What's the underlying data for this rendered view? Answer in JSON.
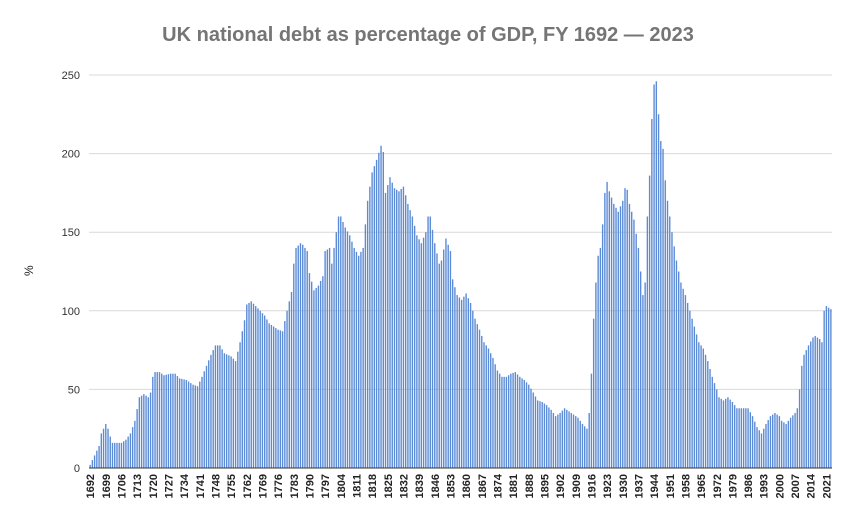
{
  "chart_data": {
    "type": "bar",
    "title": "UK national debt as percentage of GDP, FY 1692 — 2023",
    "xlabel": "",
    "ylabel": "%",
    "ylim": [
      0,
      250
    ],
    "yticks": [
      0,
      50,
      100,
      150,
      200,
      250
    ],
    "grid": true,
    "legend": "none",
    "bar_color": "#5b8bd6",
    "x_tick_labels": [
      "1692",
      "1699",
      "1706",
      "1713",
      "1720",
      "1727",
      "1734",
      "1741",
      "1748",
      "1755",
      "1762",
      "1769",
      "1776",
      "1783",
      "1790",
      "1797",
      "1804",
      "1811",
      "1818",
      "1825",
      "1832",
      "1839",
      "1846",
      "1853",
      "1860",
      "1867",
      "1874",
      "1881",
      "1888",
      "1895",
      "1902",
      "1909",
      "1916",
      "1923",
      "1930",
      "1937",
      "1944",
      "1951",
      "1958",
      "1965",
      "1972",
      "1979",
      "1986",
      "1993",
      "2000",
      "2007",
      "2014",
      "2021"
    ],
    "keyframes": [
      [
        1692,
        2
      ],
      [
        1694,
        8
      ],
      [
        1696,
        14
      ],
      [
        1697,
        22
      ],
      [
        1699,
        28
      ],
      [
        1700,
        25
      ],
      [
        1701,
        20
      ],
      [
        1702,
        16
      ],
      [
        1704,
        16
      ],
      [
        1706,
        16
      ],
      [
        1708,
        18
      ],
      [
        1710,
        22
      ],
      [
        1712,
        30
      ],
      [
        1714,
        45
      ],
      [
        1716,
        47
      ],
      [
        1718,
        45
      ],
      [
        1719,
        48
      ],
      [
        1720,
        58
      ],
      [
        1721,
        61
      ],
      [
        1723,
        61
      ],
      [
        1725,
        59
      ],
      [
        1728,
        60
      ],
      [
        1730,
        60
      ],
      [
        1732,
        57
      ],
      [
        1735,
        56
      ],
      [
        1738,
        53
      ],
      [
        1740,
        52
      ],
      [
        1742,
        58
      ],
      [
        1744,
        65
      ],
      [
        1746,
        72
      ],
      [
        1748,
        78
      ],
      [
        1750,
        78
      ],
      [
        1752,
        73
      ],
      [
        1755,
        71
      ],
      [
        1757,
        68
      ],
      [
        1759,
        80
      ],
      [
        1761,
        94
      ],
      [
        1762,
        104
      ],
      [
        1764,
        106
      ],
      [
        1766,
        103
      ],
      [
        1768,
        100
      ],
      [
        1770,
        97
      ],
      [
        1772,
        92
      ],
      [
        1774,
        90
      ],
      [
        1776,
        88
      ],
      [
        1778,
        87
      ],
      [
        1780,
        100
      ],
      [
        1782,
        112
      ],
      [
        1783,
        130
      ],
      [
        1784,
        140
      ],
      [
        1786,
        143
      ],
      [
        1787,
        142
      ],
      [
        1789,
        138
      ],
      [
        1790,
        124
      ],
      [
        1792,
        113
      ],
      [
        1794,
        116
      ],
      [
        1796,
        122
      ],
      [
        1797,
        138
      ],
      [
        1799,
        140
      ],
      [
        1800,
        130
      ],
      [
        1802,
        150
      ],
      [
        1803,
        160
      ],
      [
        1804,
        160
      ],
      [
        1806,
        153
      ],
      [
        1808,
        148
      ],
      [
        1810,
        140
      ],
      [
        1812,
        135
      ],
      [
        1814,
        140
      ],
      [
        1815,
        155
      ],
      [
        1816,
        170
      ],
      [
        1818,
        188
      ],
      [
        1820,
        196
      ],
      [
        1822,
        205
      ],
      [
        1823,
        201
      ],
      [
        1824,
        175
      ],
      [
        1826,
        185
      ],
      [
        1828,
        178
      ],
      [
        1830,
        176
      ],
      [
        1832,
        179
      ],
      [
        1834,
        168
      ],
      [
        1836,
        160
      ],
      [
        1838,
        148
      ],
      [
        1840,
        143
      ],
      [
        1842,
        150
      ],
      [
        1843,
        160
      ],
      [
        1844,
        160
      ],
      [
        1846,
        143
      ],
      [
        1848,
        130
      ],
      [
        1849,
        132
      ],
      [
        1851,
        146
      ],
      [
        1853,
        138
      ],
      [
        1854,
        120
      ],
      [
        1856,
        110
      ],
      [
        1858,
        107
      ],
      [
        1860,
        111
      ],
      [
        1862,
        105
      ],
      [
        1864,
        95
      ],
      [
        1866,
        88
      ],
      [
        1868,
        80
      ],
      [
        1870,
        76
      ],
      [
        1872,
        70
      ],
      [
        1874,
        62
      ],
      [
        1876,
        58
      ],
      [
        1878,
        58
      ],
      [
        1880,
        60
      ],
      [
        1882,
        61
      ],
      [
        1884,
        58
      ],
      [
        1886,
        56
      ],
      [
        1888,
        53
      ],
      [
        1890,
        48
      ],
      [
        1892,
        43
      ],
      [
        1894,
        42
      ],
      [
        1896,
        40
      ],
      [
        1898,
        37
      ],
      [
        1900,
        33
      ],
      [
        1902,
        35
      ],
      [
        1904,
        38
      ],
      [
        1906,
        36
      ],
      [
        1908,
        34
      ],
      [
        1910,
        32
      ],
      [
        1912,
        28
      ],
      [
        1914,
        25
      ],
      [
        1915,
        35
      ],
      [
        1916,
        60
      ],
      [
        1917,
        95
      ],
      [
        1918,
        118
      ],
      [
        1919,
        135
      ],
      [
        1920,
        140
      ],
      [
        1921,
        155
      ],
      [
        1922,
        175
      ],
      [
        1923,
        182
      ],
      [
        1924,
        176
      ],
      [
        1926,
        168
      ],
      [
        1928,
        163
      ],
      [
        1930,
        170
      ],
      [
        1931,
        178
      ],
      [
        1932,
        177
      ],
      [
        1933,
        168
      ],
      [
        1935,
        158
      ],
      [
        1937,
        140
      ],
      [
        1938,
        125
      ],
      [
        1939,
        110
      ],
      [
        1940,
        118
      ],
      [
        1941,
        160
      ],
      [
        1942,
        186
      ],
      [
        1943,
        222
      ],
      [
        1944,
        244
      ],
      [
        1945,
        246
      ],
      [
        1946,
        225
      ],
      [
        1947,
        208
      ],
      [
        1948,
        203
      ],
      [
        1949,
        183
      ],
      [
        1950,
        170
      ],
      [
        1952,
        150
      ],
      [
        1954,
        132
      ],
      [
        1956,
        118
      ],
      [
        1958,
        110
      ],
      [
        1960,
        100
      ],
      [
        1962,
        90
      ],
      [
        1964,
        80
      ],
      [
        1966,
        76
      ],
      [
        1968,
        68
      ],
      [
        1970,
        58
      ],
      [
        1972,
        50
      ],
      [
        1973,
        45
      ],
      [
        1975,
        43
      ],
      [
        1977,
        45
      ],
      [
        1979,
        42
      ],
      [
        1981,
        38
      ],
      [
        1983,
        38
      ],
      [
        1986,
        38
      ],
      [
        1988,
        33
      ],
      [
        1990,
        26
      ],
      [
        1992,
        22
      ],
      [
        1994,
        28
      ],
      [
        1996,
        33
      ],
      [
        1998,
        35
      ],
      [
        2000,
        33
      ],
      [
        2001,
        30
      ],
      [
        2003,
        28
      ],
      [
        2005,
        32
      ],
      [
        2007,
        35
      ],
      [
        2008,
        38
      ],
      [
        2009,
        50
      ],
      [
        2010,
        65
      ],
      [
        2011,
        72
      ],
      [
        2013,
        78
      ],
      [
        2015,
        83
      ],
      [
        2016,
        84
      ],
      [
        2018,
        82
      ],
      [
        2019,
        80
      ],
      [
        2020,
        100
      ],
      [
        2021,
        103
      ],
      [
        2023,
        101
      ]
    ]
  }
}
